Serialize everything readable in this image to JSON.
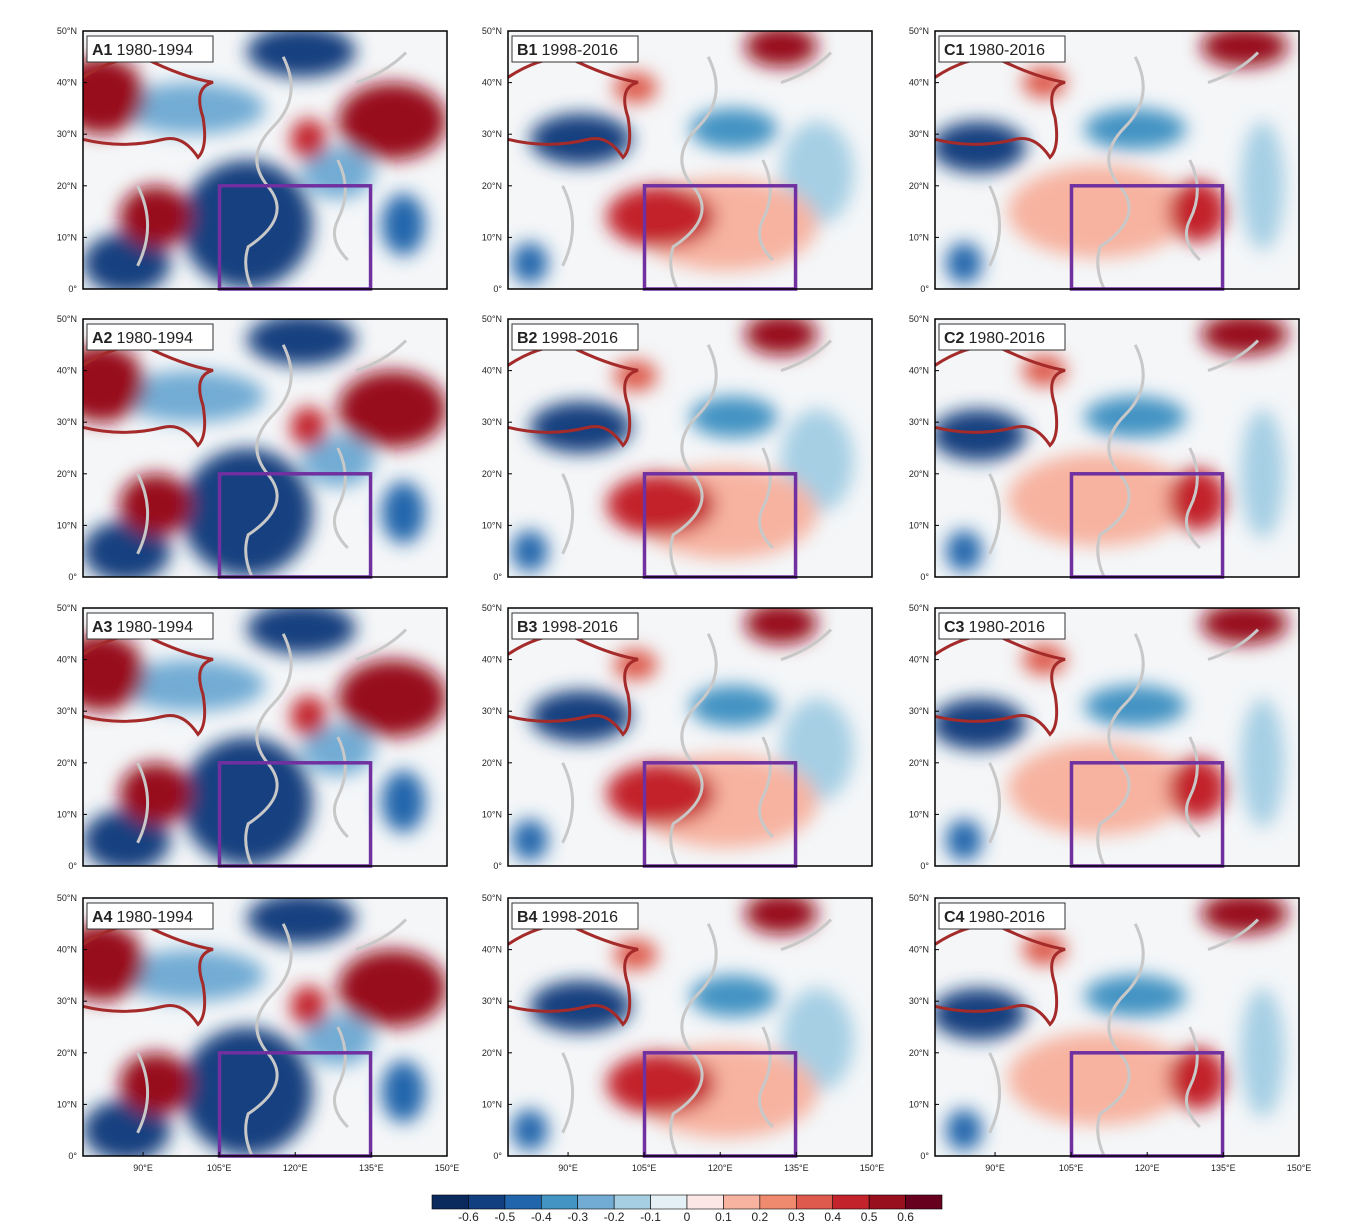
{
  "panels": [
    {
      "id": "A1",
      "period": "1980-1994"
    },
    {
      "id": "B1",
      "period": "1998-2016"
    },
    {
      "id": "C1",
      "period": "1980-2016"
    },
    {
      "id": "A2",
      "period": "1980-1994"
    },
    {
      "id": "B2",
      "period": "1998-2016"
    },
    {
      "id": "C2",
      "period": "1980-2016"
    },
    {
      "id": "A3",
      "period": "1980-1994"
    },
    {
      "id": "B3",
      "period": "1998-2016"
    },
    {
      "id": "C3",
      "period": "1980-2016"
    },
    {
      "id": "A4",
      "period": "1980-1994"
    },
    {
      "id": "B4",
      "period": "1998-2016"
    },
    {
      "id": "C4",
      "period": "1980-2016"
    }
  ],
  "lat_labels": [
    "50°N",
    "40°N",
    "30°N",
    "20°N",
    "10°N",
    "0°"
  ],
  "lon_labels": [
    "90°E",
    "105°E",
    "120°E",
    "135°E",
    "150°E"
  ],
  "colorbar": {
    "colors": [
      "#0a2a5e",
      "#123f7f",
      "#2166ac",
      "#4393c3",
      "#72acd4",
      "#a6cfe4",
      "#e4f0f6",
      "#fde6e6",
      "#f7b3a0",
      "#ef8a6e",
      "#de5a4c",
      "#c3242c",
      "#98101e",
      "#67001f"
    ],
    "ticks": [
      -0.6,
      -0.5,
      -0.4,
      -0.3,
      -0.2,
      -0.1,
      0,
      0.1,
      0.2,
      0.3,
      0.4,
      0.5,
      0.6
    ]
  }
}
